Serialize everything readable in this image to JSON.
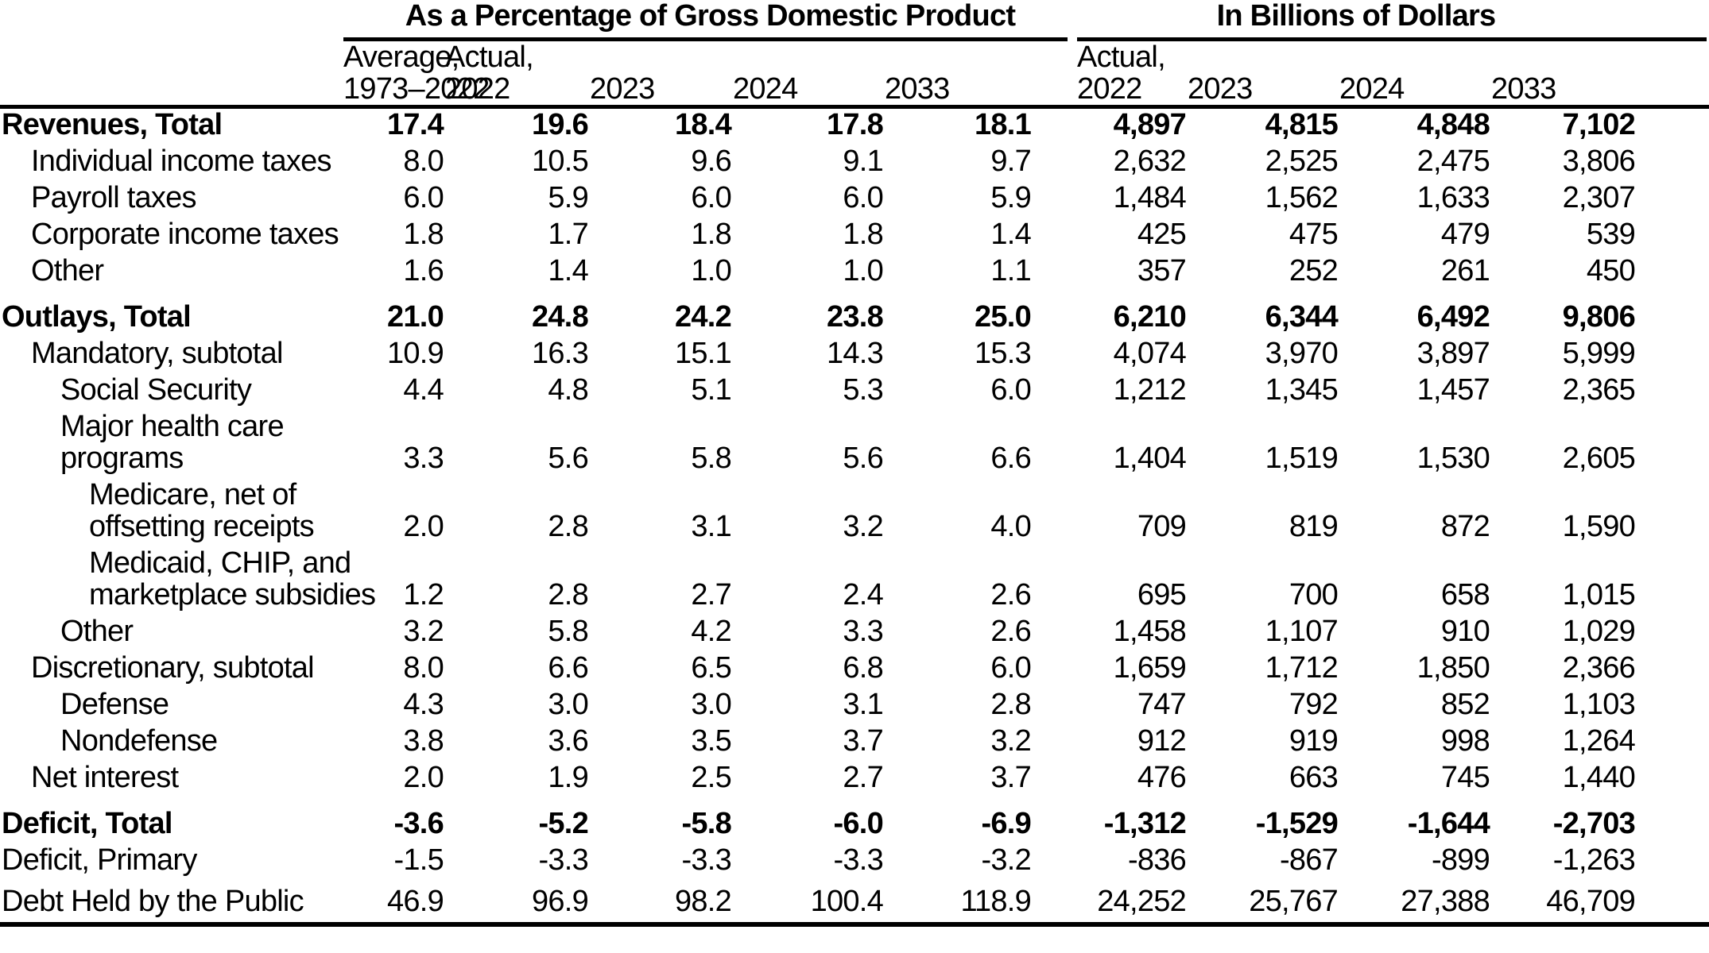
{
  "colors": {
    "text": "#000000",
    "background": "#ffffff",
    "rule": "#000000"
  },
  "table": {
    "group_headers": [
      "As a Percentage of Gross Domestic Product",
      "In Billions of Dollars"
    ],
    "col_headers": [
      "Average,\n1973–2022",
      "Actual,\n2022",
      "2023",
      "2024",
      "2033",
      "Actual,\n2022",
      "2023",
      "2024",
      "2033"
    ],
    "rows": [
      {
        "label": "Revenues, Total",
        "indent": 0,
        "bold": true,
        "space": "",
        "pct": [
          "17.4",
          "19.6",
          "18.4",
          "17.8",
          "18.1"
        ],
        "usd": [
          "4,897",
          "4,815",
          "4,848",
          "7,102"
        ]
      },
      {
        "label": "Individual income taxes",
        "indent": 1,
        "bold": false,
        "space": "",
        "pct": [
          "8.0",
          "10.5",
          "9.6",
          "9.1",
          "9.7"
        ],
        "usd": [
          "2,632",
          "2,525",
          "2,475",
          "3,806"
        ]
      },
      {
        "label": "Payroll taxes",
        "indent": 1,
        "bold": false,
        "space": "",
        "pct": [
          "6.0",
          "5.9",
          "6.0",
          "6.0",
          "5.9"
        ],
        "usd": [
          "1,484",
          "1,562",
          "1,633",
          "2,307"
        ]
      },
      {
        "label": "Corporate income taxes",
        "indent": 1,
        "bold": false,
        "space": "",
        "pct": [
          "1.8",
          "1.7",
          "1.8",
          "1.8",
          "1.4"
        ],
        "usd": [
          "425",
          "475",
          "479",
          "539"
        ]
      },
      {
        "label": "Other",
        "indent": 1,
        "bold": false,
        "space": "",
        "pct": [
          "1.6",
          "1.4",
          "1.0",
          "1.0",
          "1.1"
        ],
        "usd": [
          "357",
          "252",
          "261",
          "450"
        ]
      },
      {
        "label": "Outlays, Total",
        "indent": 0,
        "bold": true,
        "space": "space",
        "pct": [
          "21.0",
          "24.8",
          "24.2",
          "23.8",
          "25.0"
        ],
        "usd": [
          "6,210",
          "6,344",
          "6,492",
          "9,806"
        ]
      },
      {
        "label": "Mandatory, subtotal",
        "indent": 1,
        "bold": false,
        "space": "",
        "pct": [
          "10.9",
          "16.3",
          "15.1",
          "14.3",
          "15.3"
        ],
        "usd": [
          "4,074",
          "3,970",
          "3,897",
          "5,999"
        ]
      },
      {
        "label": "Social Security",
        "indent": 2,
        "bold": false,
        "space": "",
        "pct": [
          "4.4",
          "4.8",
          "5.1",
          "5.3",
          "6.0"
        ],
        "usd": [
          "1,212",
          "1,345",
          "1,457",
          "2,365"
        ]
      },
      {
        "label": "Major health care\nprograms",
        "indent": 2,
        "bold": false,
        "space": "",
        "pct": [
          "3.3",
          "5.6",
          "5.8",
          "5.6",
          "6.6"
        ],
        "usd": [
          "1,404",
          "1,519",
          "1,530",
          "2,605"
        ]
      },
      {
        "label": "Medicare, net of\noffsetting receipts",
        "indent": 3,
        "bold": false,
        "space": "",
        "pct": [
          "2.0",
          "2.8",
          "3.1",
          "3.2",
          "4.0"
        ],
        "usd": [
          "709",
          "819",
          "872",
          "1,590"
        ]
      },
      {
        "label": "Medicaid, CHIP, and\nmarketplace subsidies",
        "indent": 3,
        "bold": false,
        "space": "",
        "pct": [
          "1.2",
          "2.8",
          "2.7",
          "2.4",
          "2.6"
        ],
        "usd": [
          "695",
          "700",
          "658",
          "1,015"
        ]
      },
      {
        "label": "Other",
        "indent": 2,
        "bold": false,
        "space": "",
        "pct": [
          "3.2",
          "5.8",
          "4.2",
          "3.3",
          "2.6"
        ],
        "usd": [
          "1,458",
          "1,107",
          "910",
          "1,029"
        ]
      },
      {
        "label": "Discretionary, subtotal",
        "indent": 1,
        "bold": false,
        "space": "",
        "pct": [
          "8.0",
          "6.6",
          "6.5",
          "6.8",
          "6.0"
        ],
        "usd": [
          "1,659",
          "1,712",
          "1,850",
          "2,366"
        ]
      },
      {
        "label": "Defense",
        "indent": 2,
        "bold": false,
        "space": "",
        "pct": [
          "4.3",
          "3.0",
          "3.0",
          "3.1",
          "2.8"
        ],
        "usd": [
          "747",
          "792",
          "852",
          "1,103"
        ]
      },
      {
        "label": "Nondefense",
        "indent": 2,
        "bold": false,
        "space": "",
        "pct": [
          "3.8",
          "3.6",
          "3.5",
          "3.7",
          "3.2"
        ],
        "usd": [
          "912",
          "919",
          "998",
          "1,264"
        ]
      },
      {
        "label": "Net interest",
        "indent": 1,
        "bold": false,
        "space": "",
        "pct": [
          "2.0",
          "1.9",
          "2.5",
          "2.7",
          "3.7"
        ],
        "usd": [
          "476",
          "663",
          "745",
          "1,440"
        ]
      },
      {
        "label": "Deficit, Total",
        "indent": 0,
        "bold": true,
        "space": "space",
        "pct": [
          "-3.6",
          "-5.2",
          "-5.8",
          "-6.0",
          "-6.9"
        ],
        "usd": [
          "-1,312",
          "-1,529",
          "-1,644",
          "-2,703"
        ]
      },
      {
        "label": "Deficit, Primary",
        "indent": 0,
        "bold": false,
        "space": "",
        "pct": [
          "-1.5",
          "-3.3",
          "-3.3",
          "-3.3",
          "-3.2"
        ],
        "usd": [
          "-836",
          "-867",
          "-899",
          "-1,263"
        ]
      },
      {
        "label": "Debt Held by the Public",
        "indent": 0,
        "bold": false,
        "space": "space-sm",
        "pct": [
          "46.9",
          "96.9",
          "98.2",
          "100.4",
          "118.9"
        ],
        "usd": [
          "24,252",
          "25,767",
          "27,388",
          "46,709"
        ]
      }
    ]
  }
}
